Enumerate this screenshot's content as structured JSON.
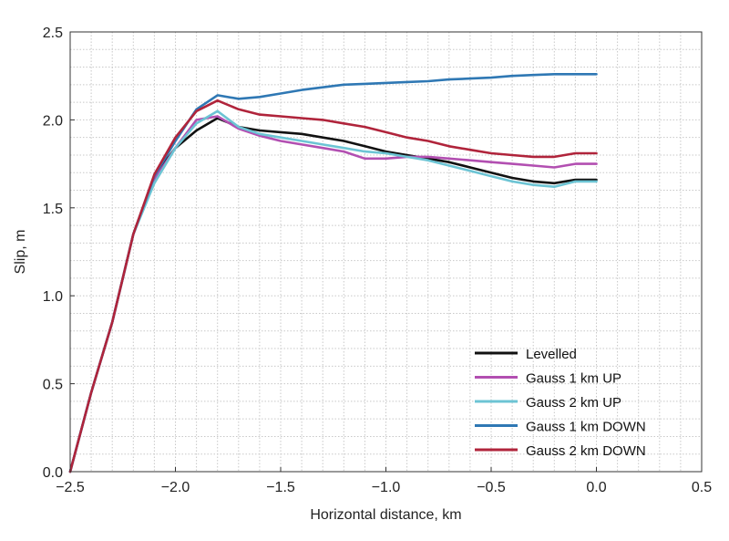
{
  "chart_data": {
    "type": "line",
    "title": "",
    "xlabel": "Horizontal distance, km",
    "ylabel": "Slip, m",
    "xlim": [
      -2.5,
      0.5
    ],
    "ylim": [
      0.0,
      2.5
    ],
    "x_ticks": [
      -2.5,
      -2.0,
      -1.5,
      -1.0,
      -0.5,
      0.0,
      0.5
    ],
    "x_tick_labels": [
      "−2.5",
      "−2.0",
      "−1.5",
      "−1.0",
      "−0.5",
      "0.0",
      "0.5"
    ],
    "y_ticks": [
      0.0,
      0.5,
      1.0,
      1.5,
      2.0,
      2.5
    ],
    "y_tick_labels": [
      "0.0",
      "0.5",
      "1.0",
      "1.5",
      "2.0",
      "2.5"
    ],
    "grid": true,
    "legend_position": "bottom-right",
    "series": [
      {
        "name": "Levelled",
        "color": "#111111",
        "x": [
          -2.5,
          -2.4,
          -2.3,
          -2.2,
          -2.1,
          -2.0,
          -1.9,
          -1.8,
          -1.7,
          -1.6,
          -1.5,
          -1.4,
          -1.3,
          -1.2,
          -1.1,
          -1.0,
          -0.9,
          -0.8,
          -0.7,
          -0.6,
          -0.5,
          -0.4,
          -0.3,
          -0.2,
          -0.1,
          0.0
        ],
        "y": [
          0.0,
          0.45,
          0.85,
          1.35,
          1.68,
          1.84,
          1.94,
          2.01,
          1.96,
          1.94,
          1.93,
          1.92,
          1.9,
          1.88,
          1.85,
          1.82,
          1.8,
          1.78,
          1.76,
          1.73,
          1.7,
          1.67,
          1.65,
          1.64,
          1.66,
          1.66
        ]
      },
      {
        "name": "Gauss 1 km UP",
        "color": "#b24fb1",
        "x": [
          -2.5,
          -2.4,
          -2.3,
          -2.2,
          -2.1,
          -2.0,
          -1.9,
          -1.8,
          -1.7,
          -1.6,
          -1.5,
          -1.4,
          -1.3,
          -1.2,
          -1.1,
          -1.0,
          -0.9,
          -0.8,
          -0.7,
          -0.6,
          -0.5,
          -0.4,
          -0.3,
          -0.2,
          -0.1,
          0.0
        ],
        "y": [
          0.0,
          0.45,
          0.85,
          1.35,
          1.66,
          1.84,
          2.0,
          2.02,
          1.95,
          1.91,
          1.88,
          1.86,
          1.84,
          1.82,
          1.78,
          1.78,
          1.79,
          1.79,
          1.78,
          1.77,
          1.76,
          1.75,
          1.74,
          1.73,
          1.75,
          1.75
        ]
      },
      {
        "name": "Gauss 2 km UP",
        "color": "#6cc4d4",
        "x": [
          -2.5,
          -2.4,
          -2.3,
          -2.2,
          -2.1,
          -2.0,
          -1.9,
          -1.8,
          -1.7,
          -1.6,
          -1.5,
          -1.4,
          -1.3,
          -1.2,
          -1.1,
          -1.0,
          -0.9,
          -0.8,
          -0.7,
          -0.6,
          -0.5,
          -0.4,
          -0.3,
          -0.2,
          -0.1,
          0.0
        ],
        "y": [
          0.0,
          0.45,
          0.85,
          1.35,
          1.64,
          1.84,
          1.98,
          2.05,
          1.96,
          1.92,
          1.9,
          1.88,
          1.86,
          1.84,
          1.82,
          1.81,
          1.79,
          1.77,
          1.74,
          1.71,
          1.68,
          1.65,
          1.63,
          1.62,
          1.65,
          1.65
        ]
      },
      {
        "name": "Gauss 1 km DOWN",
        "color": "#2f78b4",
        "x": [
          -2.5,
          -2.4,
          -2.3,
          -2.2,
          -2.1,
          -2.0,
          -1.9,
          -1.8,
          -1.7,
          -1.6,
          -1.5,
          -1.4,
          -1.3,
          -1.2,
          -1.1,
          -1.0,
          -0.9,
          -0.8,
          -0.7,
          -0.6,
          -0.5,
          -0.4,
          -0.3,
          -0.2,
          -0.1,
          0.0
        ],
        "y": [
          0.0,
          0.45,
          0.85,
          1.35,
          1.68,
          1.88,
          2.06,
          2.14,
          2.12,
          2.13,
          2.15,
          2.17,
          2.185,
          2.2,
          2.205,
          2.21,
          2.215,
          2.22,
          2.23,
          2.235,
          2.24,
          2.25,
          2.255,
          2.26,
          2.26,
          2.26
        ]
      },
      {
        "name": "Gauss 2 km DOWN",
        "color": "#b0243b",
        "x": [
          -2.5,
          -2.4,
          -2.3,
          -2.2,
          -2.1,
          -2.0,
          -1.9,
          -1.8,
          -1.7,
          -1.6,
          -1.5,
          -1.4,
          -1.3,
          -1.2,
          -1.1,
          -1.0,
          -0.9,
          -0.8,
          -0.7,
          -0.6,
          -0.5,
          -0.4,
          -0.3,
          -0.2,
          -0.1,
          0.0
        ],
        "y": [
          0.0,
          0.45,
          0.85,
          1.35,
          1.69,
          1.9,
          2.05,
          2.11,
          2.06,
          2.03,
          2.02,
          2.01,
          2.0,
          1.98,
          1.96,
          1.93,
          1.9,
          1.88,
          1.85,
          1.83,
          1.81,
          1.8,
          1.79,
          1.79,
          1.81,
          1.81
        ]
      }
    ]
  }
}
